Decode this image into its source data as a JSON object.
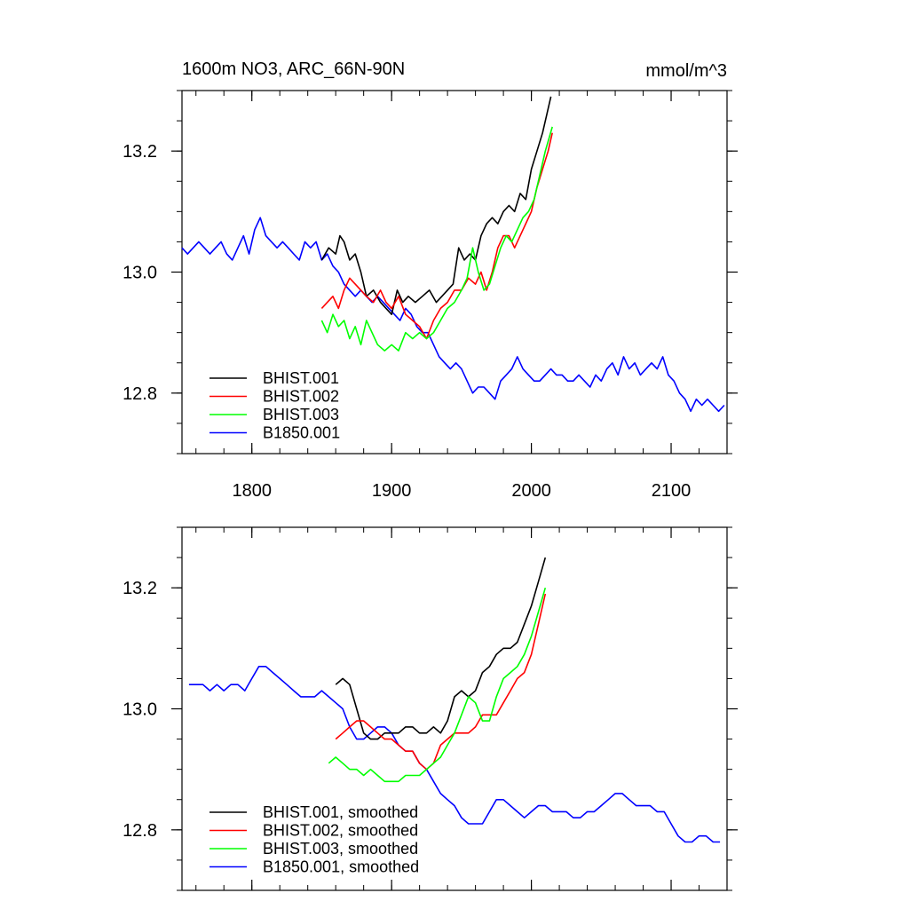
{
  "figure": {
    "title_left": "1600m NO3, ARC_66N-90N",
    "title_right": "mmol/m^3"
  },
  "chart_data": [
    {
      "type": "line",
      "title": "1600m NO3, ARC_66N-90N",
      "units": "mmol/m^3",
      "xlim": [
        1750,
        2140
      ],
      "ylim": [
        12.7,
        13.3
      ],
      "x_ticks": [
        1800,
        1900,
        2000,
        2100
      ],
      "x_tick_labels": [
        "1800",
        "1900",
        "2000",
        "2100"
      ],
      "y_ticks": [
        12.8,
        13.0,
        13.2
      ],
      "y_tick_labels": [
        "12.8",
        "13.0",
        "13.2"
      ],
      "show_x_tick_labels": true,
      "legend_position": "bottom-left",
      "series": [
        {
          "name": "BHIST.001",
          "color": "#000000",
          "x": [
            1850,
            1855,
            1860,
            1863,
            1866,
            1870,
            1874,
            1878,
            1882,
            1887,
            1892,
            1896,
            1900,
            1904,
            1908,
            1912,
            1917,
            1922,
            1927,
            1932,
            1936,
            1940,
            1944,
            1948,
            1952,
            1956,
            1960,
            1964,
            1968,
            1972,
            1976,
            1980,
            1984,
            1988,
            1992,
            1996,
            2000,
            2004,
            2008,
            2011,
            2014
          ],
          "y": [
            13.02,
            13.04,
            13.03,
            13.06,
            13.05,
            13.02,
            13.03,
            13.0,
            12.96,
            12.97,
            12.95,
            12.94,
            12.93,
            12.97,
            12.95,
            12.96,
            12.95,
            12.96,
            12.97,
            12.95,
            12.96,
            12.97,
            12.98,
            13.04,
            13.02,
            13.03,
            13.02,
            13.06,
            13.08,
            13.09,
            13.08,
            13.1,
            13.11,
            13.1,
            13.13,
            13.12,
            13.17,
            13.2,
            13.23,
            13.26,
            13.29
          ]
        },
        {
          "name": "BHIST.002",
          "color": "#ff0000",
          "x": [
            1850,
            1854,
            1858,
            1862,
            1866,
            1870,
            1874,
            1878,
            1882,
            1887,
            1892,
            1896,
            1900,
            1905,
            1910,
            1915,
            1920,
            1925,
            1930,
            1935,
            1940,
            1945,
            1950,
            1955,
            1960,
            1964,
            1968,
            1972,
            1976,
            1980,
            1984,
            1988,
            1992,
            1996,
            2000,
            2004,
            2008,
            2012,
            2015
          ],
          "y": [
            12.94,
            12.95,
            12.96,
            12.94,
            12.97,
            12.99,
            12.98,
            12.97,
            12.96,
            12.95,
            12.97,
            12.95,
            12.94,
            12.96,
            12.93,
            12.92,
            12.91,
            12.89,
            12.92,
            12.94,
            12.95,
            12.97,
            12.97,
            12.99,
            12.98,
            13.0,
            12.97,
            13.0,
            13.04,
            13.06,
            13.06,
            13.04,
            13.06,
            13.08,
            13.1,
            13.14,
            13.17,
            13.2,
            13.23
          ]
        },
        {
          "name": "BHIST.003",
          "color": "#00ff00",
          "x": [
            1850,
            1854,
            1858,
            1862,
            1866,
            1870,
            1874,
            1878,
            1882,
            1886,
            1890,
            1895,
            1900,
            1905,
            1910,
            1915,
            1920,
            1925,
            1930,
            1935,
            1940,
            1945,
            1950,
            1954,
            1958,
            1962,
            1966,
            1970,
            1974,
            1978,
            1982,
            1986,
            1990,
            1994,
            1998,
            2002,
            2006,
            2010,
            2015
          ],
          "y": [
            12.92,
            12.9,
            12.93,
            12.91,
            12.92,
            12.89,
            12.91,
            12.88,
            12.92,
            12.9,
            12.88,
            12.87,
            12.88,
            12.87,
            12.9,
            12.89,
            12.9,
            12.89,
            12.9,
            12.92,
            12.94,
            12.95,
            12.97,
            12.99,
            13.04,
            13.0,
            12.97,
            12.98,
            13.01,
            13.04,
            13.06,
            13.05,
            13.07,
            13.09,
            13.1,
            13.12,
            13.16,
            13.2,
            13.24
          ]
        },
        {
          "name": "B1850.001",
          "color": "#0000ff",
          "x": [
            1750,
            1754,
            1758,
            1762,
            1766,
            1770,
            1774,
            1778,
            1782,
            1786,
            1790,
            1794,
            1798,
            1802,
            1806,
            1810,
            1814,
            1818,
            1822,
            1826,
            1830,
            1834,
            1838,
            1842,
            1846,
            1850,
            1854,
            1858,
            1862,
            1866,
            1870,
            1874,
            1878,
            1882,
            1886,
            1890,
            1894,
            1898,
            1902,
            1906,
            1910,
            1914,
            1918,
            1922,
            1926,
            1930,
            1934,
            1938,
            1942,
            1946,
            1950,
            1954,
            1958,
            1962,
            1966,
            1970,
            1974,
            1978,
            1982,
            1986,
            1990,
            1994,
            1998,
            2002,
            2006,
            2010,
            2014,
            2018,
            2022,
            2026,
            2030,
            2034,
            2038,
            2042,
            2046,
            2050,
            2054,
            2058,
            2062,
            2066,
            2070,
            2074,
            2078,
            2082,
            2086,
            2090,
            2094,
            2098,
            2102,
            2106,
            2110,
            2114,
            2118,
            2122,
            2126,
            2130,
            2134,
            2138
          ],
          "y": [
            13.04,
            13.03,
            13.04,
            13.05,
            13.04,
            13.03,
            13.04,
            13.05,
            13.03,
            13.02,
            13.04,
            13.06,
            13.03,
            13.07,
            13.09,
            13.06,
            13.05,
            13.04,
            13.05,
            13.04,
            13.03,
            13.02,
            13.05,
            13.04,
            13.05,
            13.02,
            13.03,
            13.01,
            13.0,
            12.98,
            12.97,
            12.96,
            12.97,
            12.96,
            12.95,
            12.96,
            12.95,
            12.94,
            12.93,
            12.92,
            12.94,
            12.93,
            12.91,
            12.9,
            12.9,
            12.88,
            12.86,
            12.85,
            12.84,
            12.85,
            12.84,
            12.82,
            12.8,
            12.81,
            12.81,
            12.8,
            12.79,
            12.82,
            12.83,
            12.84,
            12.86,
            12.84,
            12.83,
            12.82,
            12.82,
            12.83,
            12.84,
            12.83,
            12.83,
            12.82,
            12.82,
            12.83,
            12.82,
            12.81,
            12.83,
            12.82,
            12.84,
            12.85,
            12.83,
            12.86,
            12.84,
            12.85,
            12.83,
            12.84,
            12.85,
            12.84,
            12.86,
            12.83,
            12.82,
            12.8,
            12.79,
            12.77,
            12.79,
            12.78,
            12.79,
            12.78,
            12.77,
            12.78
          ]
        }
      ]
    },
    {
      "type": "line",
      "xlim": [
        1750,
        2140
      ],
      "ylim": [
        12.7,
        13.3
      ],
      "x_ticks": [
        1800,
        1900,
        2000,
        2100
      ],
      "y_ticks": [
        12.8,
        13.0,
        13.2
      ],
      "y_tick_labels": [
        "12.8",
        "13.0",
        "13.2"
      ],
      "show_x_tick_labels": false,
      "legend_position": "bottom-left",
      "series": [
        {
          "name": "BHIST.001, smoothed",
          "color": "#000000",
          "x": [
            1860,
            1865,
            1870,
            1875,
            1880,
            1885,
            1890,
            1895,
            1900,
            1905,
            1910,
            1915,
            1920,
            1925,
            1930,
            1935,
            1940,
            1945,
            1950,
            1955,
            1960,
            1965,
            1970,
            1975,
            1980,
            1985,
            1990,
            1995,
            2000,
            2005,
            2010
          ],
          "y": [
            13.04,
            13.05,
            13.04,
            13.0,
            12.96,
            12.95,
            12.95,
            12.96,
            12.96,
            12.96,
            12.97,
            12.97,
            12.96,
            12.96,
            12.97,
            12.96,
            12.98,
            13.02,
            13.03,
            13.02,
            13.03,
            13.06,
            13.07,
            13.09,
            13.1,
            13.1,
            13.11,
            13.14,
            13.17,
            13.21,
            13.25
          ]
        },
        {
          "name": "BHIST.002, smoothed",
          "color": "#ff0000",
          "x": [
            1860,
            1865,
            1870,
            1875,
            1880,
            1885,
            1890,
            1895,
            1900,
            1905,
            1910,
            1915,
            1920,
            1925,
            1930,
            1935,
            1940,
            1945,
            1950,
            1955,
            1960,
            1965,
            1970,
            1975,
            1980,
            1985,
            1990,
            1995,
            2000,
            2005,
            2010
          ],
          "y": [
            12.95,
            12.96,
            12.97,
            12.98,
            12.98,
            12.97,
            12.96,
            12.95,
            12.95,
            12.94,
            12.93,
            12.93,
            12.91,
            12.9,
            12.91,
            12.94,
            12.95,
            12.96,
            12.96,
            12.96,
            12.97,
            12.99,
            12.99,
            12.99,
            13.01,
            13.03,
            13.05,
            13.06,
            13.09,
            13.14,
            13.19
          ]
        },
        {
          "name": "BHIST.003, smoothed",
          "color": "#00ff00",
          "x": [
            1855,
            1860,
            1865,
            1870,
            1875,
            1880,
            1885,
            1890,
            1895,
            1900,
            1905,
            1910,
            1915,
            1920,
            1925,
            1930,
            1935,
            1940,
            1945,
            1950,
            1955,
            1960,
            1965,
            1970,
            1975,
            1980,
            1985,
            1990,
            1995,
            2000,
            2005,
            2010
          ],
          "y": [
            12.91,
            12.92,
            12.91,
            12.9,
            12.9,
            12.89,
            12.9,
            12.89,
            12.88,
            12.88,
            12.88,
            12.89,
            12.89,
            12.89,
            12.9,
            12.91,
            12.92,
            12.94,
            12.96,
            12.99,
            13.02,
            13.01,
            12.98,
            12.98,
            13.02,
            13.05,
            13.06,
            13.07,
            13.09,
            13.12,
            13.16,
            13.2
          ]
        },
        {
          "name": "B1850.001, smoothed",
          "color": "#0000ff",
          "x": [
            1755,
            1760,
            1765,
            1770,
            1775,
            1780,
            1785,
            1790,
            1795,
            1800,
            1805,
            1810,
            1815,
            1820,
            1825,
            1830,
            1835,
            1840,
            1845,
            1850,
            1855,
            1860,
            1865,
            1870,
            1875,
            1880,
            1885,
            1890,
            1895,
            1900,
            1905,
            1910,
            1915,
            1920,
            1925,
            1930,
            1935,
            1940,
            1945,
            1950,
            1955,
            1960,
            1965,
            1970,
            1975,
            1980,
            1985,
            1990,
            1995,
            2000,
            2005,
            2010,
            2015,
            2020,
            2025,
            2030,
            2035,
            2040,
            2045,
            2050,
            2055,
            2060,
            2065,
            2070,
            2075,
            2080,
            2085,
            2090,
            2095,
            2100,
            2105,
            2110,
            2115,
            2120,
            2125,
            2130,
            2135
          ],
          "y": [
            13.04,
            13.04,
            13.04,
            13.03,
            13.04,
            13.03,
            13.04,
            13.04,
            13.03,
            13.05,
            13.07,
            13.07,
            13.06,
            13.05,
            13.04,
            13.03,
            13.02,
            13.02,
            13.02,
            13.03,
            13.02,
            13.01,
            13.0,
            12.97,
            12.95,
            12.95,
            12.96,
            12.97,
            12.97,
            12.96,
            12.94,
            12.93,
            12.93,
            12.91,
            12.9,
            12.88,
            12.86,
            12.85,
            12.84,
            12.82,
            12.81,
            12.81,
            12.81,
            12.83,
            12.85,
            12.85,
            12.84,
            12.83,
            12.82,
            12.83,
            12.84,
            12.84,
            12.83,
            12.83,
            12.83,
            12.82,
            12.82,
            12.83,
            12.83,
            12.84,
            12.85,
            12.86,
            12.86,
            12.85,
            12.84,
            12.84,
            12.84,
            12.83,
            12.83,
            12.81,
            12.79,
            12.78,
            12.78,
            12.79,
            12.79,
            12.78,
            12.78
          ]
        }
      ]
    }
  ]
}
